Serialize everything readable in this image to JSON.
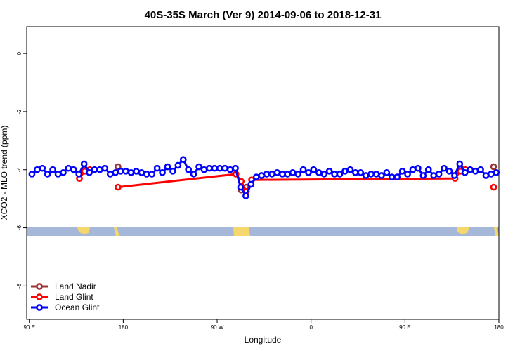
{
  "chart_data": {
    "type": "line",
    "title": "40S-35S March (Ver 9)   2014-09-06 to 2018-12-31",
    "x_label": "Longitude",
    "y_label": "XCO2 - MLO trend (ppm)",
    "xlim": [
      87.5,
      540
    ],
    "ylim": [
      -9.15,
      0.92
    ],
    "xticks": [
      {
        "value": 90,
        "label": "90 E"
      },
      180,
      {
        "value": 270,
        "label": "90 W"
      },
      {
        "value": 360,
        "label": "0"
      },
      {
        "value": 450,
        "label": "90 E"
      },
      {
        "value": 540,
        "label": "180"
      }
    ],
    "yticks": [
      0,
      -2,
      -4,
      -6,
      -8
    ],
    "legend": "bottomleft",
    "series": [
      {
        "name": "Land Nadir",
        "color": "#993333",
        "x": [
          143,
          160,
          175,
          290,
          293,
          298,
          400,
          506,
          520,
          535
        ],
        "values": [
          -4.0,
          null,
          -3.9,
          null,
          -4.7,
          -4.6,
          null,
          -4.0,
          null,
          -3.9
        ]
      },
      {
        "name": "Land Glint",
        "color": "#ff0000",
        "x": [
          138,
          143,
          148,
          170,
          175,
          288,
          293,
          298,
          303,
          498,
          503,
          508,
          530,
          535
        ],
        "values": [
          -4.3,
          -4.05,
          -4.0,
          null,
          -4.6,
          -4.15,
          -4.4,
          -4.75,
          -4.35,
          -4.3,
          -4.05,
          -4.0,
          null,
          -4.6
        ]
      },
      {
        "name": "Ocean Glint",
        "color": "#0000ff",
        "x": [
          92.5,
          97.5,
          102.5,
          107.5,
          112.5,
          117.5,
          122.5,
          127.5,
          132.5,
          137.5,
          142.5,
          147.5,
          152.5,
          157.5,
          162.5,
          167.5,
          172.5,
          177.5,
          182.5,
          187.5,
          192.5,
          197.5,
          202.5,
          207.5,
          212.5,
          217.5,
          222.5,
          227.5,
          232.5,
          237.5,
          242.5,
          247.5,
          252.5,
          257.5,
          262.5,
          267.5,
          272.5,
          277.5,
          282.5,
          287.5,
          292.5,
          297.5,
          302.5,
          307.5,
          312.5,
          317.5,
          322.5,
          327.5,
          332.5,
          337.5,
          342.5,
          347.5,
          352.5,
          357.5,
          362.5,
          367.5,
          372.5,
          377.5,
          382.5,
          387.5,
          392.5,
          397.5,
          402.5,
          407.5,
          412.5,
          417.5,
          422.5,
          427.5,
          432.5,
          437.5,
          442.5,
          447.5,
          452.5,
          457.5,
          462.5,
          467.5,
          472.5,
          477.5,
          482.5,
          487.5,
          492.5,
          497.5,
          502.5,
          507.5,
          512.5,
          517.5,
          522.5,
          527.5,
          532.5,
          537.5
        ],
        "values": [
          -4.15,
          -4.0,
          -3.95,
          -4.15,
          -4.0,
          -4.15,
          -4.1,
          -3.95,
          -4.0,
          -4.15,
          -3.8,
          -4.1,
          -4.0,
          -4.0,
          -3.95,
          -4.15,
          -4.1,
          -4.05,
          -4.05,
          -4.1,
          -4.05,
          -4.1,
          -4.15,
          -4.15,
          -3.95,
          -4.1,
          -3.9,
          -4.05,
          -3.85,
          -3.65,
          -4.0,
          -4.15,
          -3.9,
          -4.0,
          -3.95,
          -3.95,
          -3.95,
          -3.95,
          -4.0,
          -3.95,
          -4.6,
          -4.9,
          -4.5,
          -4.25,
          -4.2,
          -4.15,
          -4.15,
          -4.1,
          -4.15,
          -4.15,
          -4.1,
          -4.15,
          -4.0,
          -4.1,
          -4.0,
          -4.1,
          -4.15,
          -4.05,
          -4.15,
          -4.15,
          -4.05,
          -4.0,
          -4.1,
          -4.1,
          -4.2,
          -4.15,
          -4.15,
          -4.2,
          -4.1,
          -4.25,
          -4.25,
          -4.05,
          -4.15,
          -4.0,
          -3.95,
          -4.2,
          -4.0,
          -4.2,
          -4.15,
          -3.95,
          -4.05,
          -4.2,
          -3.8,
          -4.1,
          -4.0,
          -4.05,
          -4.0,
          -4.2,
          -4.15,
          -4.1
        ]
      }
    ]
  }
}
